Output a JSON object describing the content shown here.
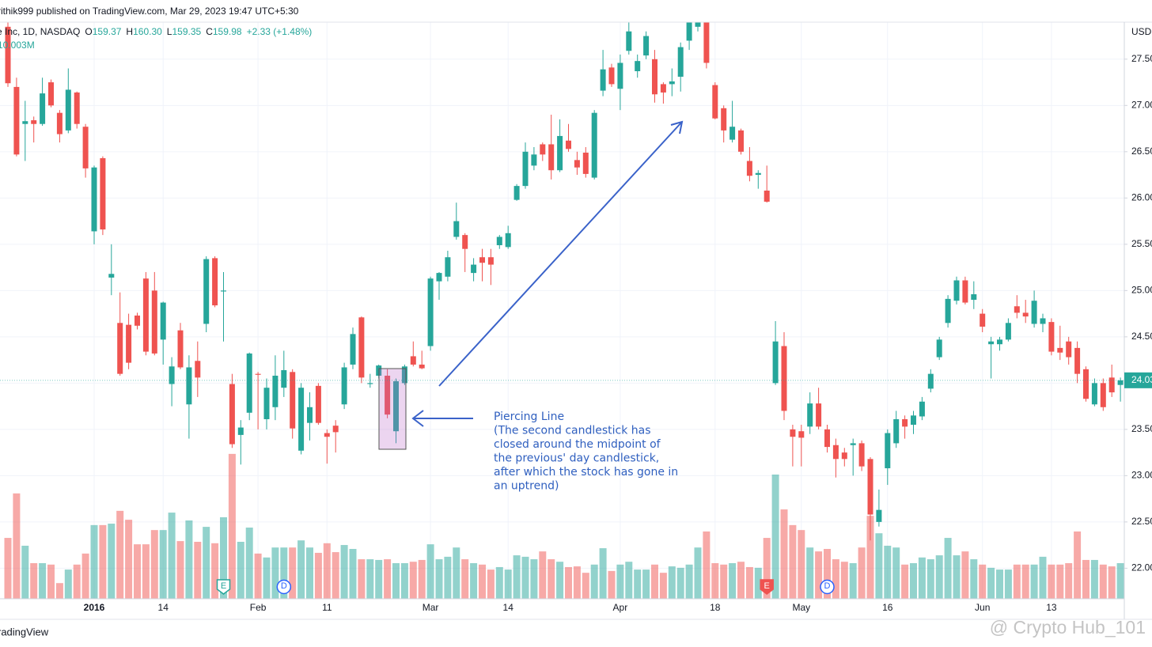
{
  "chart_data": {
    "type": "candlestick",
    "published": "rithik999 published on TradingView.com, Mar 29, 2023 19:47 UTC+5:30",
    "symbol": "e Inc, 1D, NASDAQ",
    "header_ohlc": [
      {
        "key": "O",
        "text": "159.37"
      },
      {
        "key": "H",
        "text": "160.30"
      },
      {
        "key": "L",
        "text": "159.35"
      },
      {
        "key": "C",
        "text": "159.98"
      }
    ],
    "header_change": "+2.33 (+1.48%)",
    "volume_label": "10.003M",
    "currency": "USD",
    "footer": "radingView",
    "watermark": "@ Crypto Hub_101",
    "annotation": {
      "title": "Piercing Line",
      "lines": [
        "(The second candlestick has",
        "closed around the midpoint of",
        "the previous' day candlestick,",
        "after which the stock has gone in",
        "an uptrend)"
      ]
    },
    "up_color": "#26a69a",
    "down_color": "#ef5350",
    "grid": true,
    "ylim": [
      21.67,
      27.9
    ],
    "yticks": [
      {
        "value": 22,
        "label": "22.00"
      },
      {
        "value": 22.5,
        "label": "22.50"
      },
      {
        "value": 23,
        "label": "23.00"
      },
      {
        "value": 23.5,
        "label": "23.50"
      },
      {
        "value": 24,
        "label": "24.00"
      },
      {
        "value": 24.5,
        "label": "24.50"
      },
      {
        "value": 25,
        "label": "25.00"
      },
      {
        "value": 25.5,
        "label": "25.50"
      },
      {
        "value": 26,
        "label": "26.00"
      },
      {
        "value": 26.5,
        "label": "26.50"
      },
      {
        "value": 27,
        "label": "27.00"
      },
      {
        "value": 27.5,
        "label": "27.50"
      }
    ],
    "categories": [
      null,
      null,
      null,
      null,
      null,
      null,
      null,
      null,
      null,
      null,
      "2016",
      null,
      null,
      null,
      null,
      null,
      null,
      null,
      "14",
      null,
      null,
      null,
      null,
      null,
      null,
      null,
      null,
      null,
      null,
      "Feb",
      null,
      null,
      null,
      null,
      null,
      null,
      null,
      "11",
      null,
      null,
      null,
      null,
      null,
      null,
      null,
      null,
      null,
      null,
      null,
      "Mar",
      null,
      null,
      null,
      null,
      null,
      null,
      null,
      null,
      "14",
      null,
      null,
      null,
      null,
      null,
      null,
      null,
      null,
      null,
      null,
      null,
      null,
      "Apr",
      null,
      null,
      null,
      null,
      null,
      null,
      null,
      null,
      null,
      null,
      "18",
      null,
      null,
      null,
      null,
      null,
      null,
      null,
      null,
      null,
      "May",
      null,
      null,
      null,
      null,
      null,
      null,
      null,
      null,
      null,
      "16",
      null,
      null,
      null,
      null,
      null,
      null,
      null,
      null,
      null,
      null,
      "Jun",
      null,
      null,
      null,
      null,
      null,
      null,
      null,
      "13",
      null,
      null,
      null,
      null,
      null,
      null,
      null,
      null
    ],
    "events": [
      null,
      null,
      null,
      null,
      null,
      null,
      null,
      null,
      null,
      null,
      null,
      null,
      null,
      null,
      null,
      null,
      null,
      null,
      null,
      null,
      null,
      null,
      null,
      null,
      null,
      "E",
      null,
      null,
      null,
      null,
      null,
      null,
      "D",
      null,
      null,
      null,
      null,
      null,
      null,
      null,
      null,
      null,
      null,
      null,
      null,
      null,
      null,
      null,
      null,
      null,
      null,
      null,
      null,
      null,
      null,
      null,
      null,
      null,
      null,
      null,
      null,
      null,
      null,
      null,
      null,
      null,
      null,
      null,
      null,
      null,
      null,
      null,
      null,
      null,
      null,
      null,
      null,
      null,
      null,
      null,
      null,
      null,
      null,
      null,
      null,
      null,
      null,
      null,
      "E",
      null,
      null,
      null,
      null,
      null,
      null,
      "D",
      null,
      null,
      null,
      null,
      null,
      null,
      null,
      null,
      null,
      null,
      null,
      null,
      null,
      null,
      null,
      null,
      null,
      null,
      null,
      null,
      null,
      null,
      null,
      null,
      null,
      null,
      null,
      null,
      null,
      null,
      null,
      null,
      null,
      null
    ],
    "open": [
      27.85,
      27.2,
      26.8,
      26.84,
      26.8,
      27.25,
      26.92,
      26.73,
      27.14,
      26.77,
      25.64,
      26.43,
      25.14,
      24.65,
      24.63,
      24.73,
      25.13,
      25.0,
      24.47,
      23.99,
      24.57,
      23.77,
      24.24,
      24.64,
      25.35,
      24.99,
      23.99,
      23.44,
      23.68,
      24.1,
      23.61,
      23.74,
      23.95,
      24.12,
      23.27,
      23.57,
      23.97,
      23.46,
      23.54,
      23.77,
      24.2,
      24.71,
      23.99,
      24.08,
      24.08,
      23.48,
      24.0,
      24.29,
      24.2,
      24.4,
      25.1,
      25.15,
      25.58,
      25.6,
      25.19,
      25.36,
      25.36,
      25.49,
      25.47,
      25.98,
      26.13,
      26.35,
      26.58,
      26.58,
      26.3,
      26.62,
      26.41,
      26.49,
      26.22,
      27.16,
      27.41,
      27.18,
      27.59,
      27.37,
      27.54,
      27.5,
      27.23,
      27.23,
      27.31,
      27.7,
      27.85,
      27.9,
      27.22,
      26.97,
      26.63,
      26.73,
      26.4,
      26.25,
      26.08,
      24.0,
      24.4,
      23.5,
      23.48,
      23.53,
      23.78,
      23.5,
      23.33,
      23.25,
      23.33,
      23.35,
      23.18,
      22.5,
      23.08,
      23.35,
      23.61,
      23.55,
      23.64,
      23.94,
      24.28,
      24.65,
      24.89,
      25.11,
      24.9,
      24.75,
      24.42,
      24.42,
      24.47,
      24.83,
      24.76,
      24.64,
      24.64,
      24.66,
      24.38,
      24.45,
      24.38,
      24.15,
      23.77,
      24.0,
      24.06,
      23.98
    ],
    "high": [
      27.9,
      27.3,
      27.05,
      26.88,
      27.3,
      27.28,
      26.95,
      27.4,
      27.15,
      26.8,
      26.35,
      26.45,
      25.5,
      24.98,
      24.75,
      24.76,
      25.2,
      25.2,
      24.88,
      24.28,
      24.65,
      24.3,
      24.45,
      25.37,
      25.37,
      25.2,
      24.1,
      23.6,
      24.33,
      24.12,
      24.05,
      24.3,
      24.35,
      24.15,
      24.0,
      23.9,
      24.0,
      23.5,
      23.6,
      24.22,
      24.6,
      24.72,
      24.1,
      24.2,
      24.15,
      24.05,
      24.2,
      24.45,
      24.35,
      25.15,
      25.2,
      25.43,
      25.95,
      25.62,
      25.35,
      25.45,
      25.45,
      25.6,
      25.7,
      26.15,
      26.6,
      26.55,
      26.6,
      26.9,
      26.85,
      26.8,
      26.5,
      26.55,
      26.95,
      27.6,
      27.45,
      27.55,
      27.9,
      27.55,
      27.8,
      27.6,
      27.25,
      27.4,
      27.68,
      27.9,
      27.9,
      27.9,
      27.25,
      27.0,
      27.05,
      26.75,
      26.55,
      26.3,
      26.35,
      24.67,
      24.55,
      23.55,
      23.55,
      23.9,
      23.95,
      23.55,
      23.4,
      23.3,
      23.4,
      23.38,
      23.2,
      22.85,
      23.5,
      23.7,
      23.65,
      23.7,
      23.85,
      24.15,
      24.5,
      24.95,
      25.15,
      25.15,
      25.1,
      24.8,
      24.5,
      24.5,
      24.7,
      24.95,
      24.9,
      25.0,
      24.75,
      24.7,
      24.62,
      24.5,
      24.45,
      24.18,
      24.05,
      24.05,
      24.2,
      24.06
    ],
    "low": [
      27.2,
      26.45,
      26.4,
      26.6,
      26.78,
      26.98,
      26.6,
      26.7,
      26.75,
      26.22,
      25.5,
      25.6,
      24.95,
      24.08,
      24.15,
      24.58,
      24.3,
      24.3,
      24.2,
      23.75,
      24.15,
      23.4,
      23.85,
      24.55,
      24.82,
      24.45,
      23.3,
      23.12,
      23.6,
      23.5,
      23.5,
      23.6,
      23.85,
      23.4,
      23.23,
      23.38,
      23.55,
      23.13,
      23.25,
      23.72,
      24.15,
      24.0,
      23.95,
      24.05,
      23.62,
      23.35,
      23.98,
      24.18,
      24.15,
      24.35,
      24.9,
      25.1,
      25.55,
      25.2,
      25.1,
      25.1,
      25.06,
      25.45,
      25.45,
      25.97,
      26.1,
      26.3,
      26.4,
      26.2,
      26.28,
      26.5,
      26.25,
      26.22,
      26.2,
      27.1,
      27.2,
      26.95,
      27.55,
      27.3,
      27.5,
      27.03,
      27.02,
      27.1,
      27.15,
      27.6,
      27.8,
      27.4,
      26.85,
      26.6,
      26.6,
      26.47,
      26.18,
      26.1,
      25.95,
      23.98,
      23.6,
      23.1,
      23.1,
      23.45,
      23.5,
      23.25,
      22.98,
      23.1,
      23.0,
      23.05,
      22.3,
      22.45,
      22.9,
      23.3,
      23.4,
      23.45,
      23.6,
      23.9,
      24.25,
      24.6,
      24.85,
      24.85,
      24.8,
      24.55,
      24.05,
      24.35,
      24.45,
      24.7,
      24.65,
      24.6,
      24.55,
      24.3,
      24.25,
      24.2,
      24.0,
      23.8,
      23.75,
      23.7,
      23.85,
      23.8
    ],
    "close": [
      27.24,
      26.47,
      26.83,
      26.8,
      27.13,
      27.0,
      26.69,
      27.17,
      26.8,
      26.32,
      26.33,
      25.66,
      25.18,
      24.1,
      24.22,
      24.62,
      24.34,
      24.32,
      24.87,
      24.18,
      24.17,
      24.17,
      24.06,
      25.34,
      24.84,
      25.0,
      23.34,
      23.52,
      24.32,
      24.09,
      23.95,
      24.08,
      24.14,
      23.51,
      23.95,
      23.74,
      23.57,
      23.42,
      23.47,
      24.17,
      24.53,
      24.06,
      24.0,
      24.19,
      23.66,
      24.02,
      24.18,
      24.2,
      24.16,
      25.13,
      25.19,
      25.36,
      25.75,
      25.45,
      25.28,
      25.3,
      25.28,
      25.58,
      25.62,
      26.13,
      26.5,
      26.47,
      26.47,
      26.3,
      26.67,
      26.53,
      26.33,
      26.26,
      26.92,
      27.39,
      27.23,
      27.46,
      27.8,
      27.48,
      27.75,
      27.12,
      27.14,
      27.26,
      27.63,
      27.9,
      27.9,
      27.46,
      26.86,
      26.73,
      26.77,
      26.5,
      26.24,
      26.27,
      25.96,
      24.45,
      23.7,
      23.42,
      23.41,
      23.78,
      23.53,
      23.31,
      23.18,
      23.18,
      23.35,
      23.1,
      22.58,
      22.63,
      23.46,
      23.61,
      23.53,
      23.65,
      23.8,
      24.1,
      24.47,
      24.91,
      25.11,
      24.87,
      24.96,
      24.61,
      24.45,
      24.47,
      24.65,
      24.76,
      24.72,
      24.89,
      24.7,
      24.34,
      24.33,
      24.28,
      24.1,
      23.83,
      24.0,
      23.74,
      23.9,
      24.03
    ],
    "volume": [
      17.1,
      29.6,
      14.9,
      10.0,
      10.0,
      9.6,
      4.4,
      8.2,
      9.6,
      12.7,
      20.7,
      20.7,
      21.1,
      24.7,
      22.2,
      15.3,
      15.3,
      19.3,
      19.3,
      24.2,
      16.2,
      22.0,
      16.0,
      20.2,
      15.6,
      22.9,
      40.7,
      16.0,
      20.0,
      12.7,
      11.6,
      14.4,
      14.4,
      14.4,
      16.4,
      14.4,
      12.9,
      15.6,
      13.1,
      15.1,
      14.0,
      11.1,
      11.1,
      10.9,
      11.1,
      10.0,
      10.0,
      10.4,
      10.9,
      15.3,
      11.1,
      11.8,
      14.4,
      11.1,
      10.0,
      9.6,
      8.2,
      8.9,
      8.2,
      12.2,
      11.8,
      11.1,
      13.3,
      11.1,
      10.4,
      8.9,
      9.1,
      7.3,
      9.6,
      14.2,
      7.8,
      9.6,
      10.4,
      8.2,
      8.2,
      9.6,
      7.3,
      9.1,
      8.7,
      9.6,
      14.4,
      18.9,
      10.0,
      9.6,
      10.0,
      10.4,
      8.9,
      8.7,
      17.1,
      34.9,
      25.1,
      20.7,
      19.3,
      14.4,
      13.3,
      14.0,
      11.1,
      10.4,
      10.0,
      14.4,
      23.3,
      18.4,
      14.9,
      14.4,
      9.6,
      10.0,
      11.6,
      11.1,
      12.2,
      17.1,
      12.2,
      13.3,
      11.1,
      9.6,
      8.7,
      8.2,
      8.2,
      9.6,
      9.6,
      9.6,
      11.8,
      9.6,
      9.6,
      10.0,
      18.9,
      10.9,
      10.9,
      9.6,
      9.1,
      10.003
    ]
  }
}
